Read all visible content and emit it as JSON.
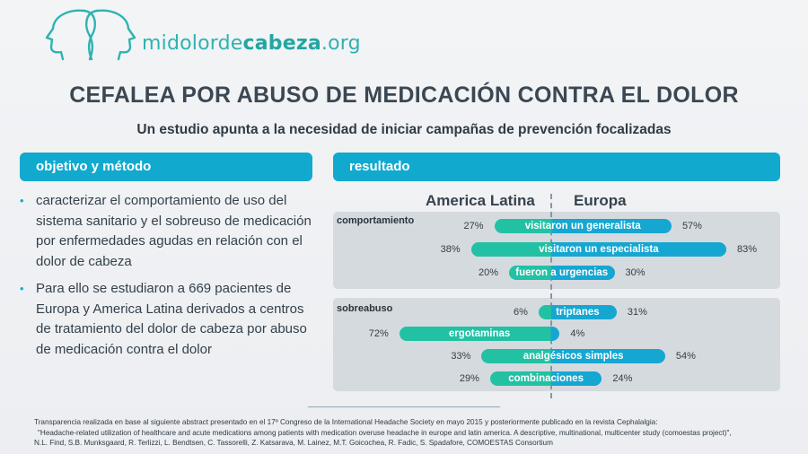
{
  "logo": {
    "text_part1": "midolorde",
    "text_part2": "cabeza",
    "text_part3": ".org"
  },
  "title": "CEFALEA POR ABUSO DE MEDICACIÓN CONTRA EL DOLOR",
  "subtitle": "Un estudio apunta a la necesidad de iniciar campañas de prevención focalizadas",
  "sections": {
    "left_header": "objetivo y método",
    "right_header": "resultado"
  },
  "bullets": [
    "caracterizar el comportamiento de uso del sistema sanitario y el sobreuso de medicación por enfermedades agudas en relación con el dolor de cabeza",
    "Para ello se estudiaron a 669 pacientes de Europa y America Latina derivados a centros de tratamiento del dolor de cabeza por abuso de medicación contra el dolor"
  ],
  "colors": {
    "accent_blue": "#12a9cf",
    "accent_teal": "#1dbfa6",
    "bar_left": "#22c1a4",
    "bar_right": "#15a7d2",
    "panel": "#d5dadf"
  },
  "chart_data": {
    "type": "bar",
    "layout": "diverging",
    "series": [
      {
        "name": "America Latina"
      },
      {
        "name": "Europa"
      }
    ],
    "groups": [
      {
        "label": "comportamiento",
        "rows": [
          {
            "label": "visitaron un generalista",
            "america_latina": 27,
            "europa": 57,
            "america_latina_text": "27%",
            "europa_text": "57%"
          },
          {
            "label": "visitaron un especialista",
            "america_latina": 38,
            "europa": 83,
            "america_latina_text": "38%",
            "europa_text": "83%"
          },
          {
            "label": "fueron a urgencias",
            "america_latina": 20,
            "europa": 30,
            "america_latina_text": "20%",
            "europa_text": "30%"
          }
        ]
      },
      {
        "label": "sobreabuso",
        "rows": [
          {
            "label": "triptanes",
            "america_latina": 6,
            "europa": 31,
            "america_latina_text": "6%",
            "europa_text": "31%"
          },
          {
            "label": "ergotaminas",
            "america_latina": 72,
            "europa": 4,
            "america_latina_text": "72%",
            "europa_text": "4%"
          },
          {
            "label": "analgésicos simples",
            "america_latina": 33,
            "europa": 54,
            "america_latina_text": "33%",
            "europa_text": "54%"
          },
          {
            "label": "combinaciones",
            "america_latina": 29,
            "europa": 24,
            "america_latina_text": "29%",
            "europa_text": "24%"
          }
        ]
      }
    ]
  },
  "footer": {
    "line1": "Transparencia realizada en base al siguiente abstract presentado en el 17º Congreso de la International Headache Society en mayo 2015 y posteriormente publicado en la revista Cephalalgia:",
    "line2": "\"Headache-related utilization of healthcare and acute medications among patients with medication overuse headache in europe and latin america. A descriptive, multinational, multicenter study (comoestas project)\",",
    "line3": "N.L. Find, S.B. Munksgaard, R. Terlizzi, L. Bendtsen, C. Tassorelli, Z. Katsarava, M. Lainez, M.T. Goicochea, R. Fadic, S. Spadafore, COMOESTAS Consortium"
  }
}
